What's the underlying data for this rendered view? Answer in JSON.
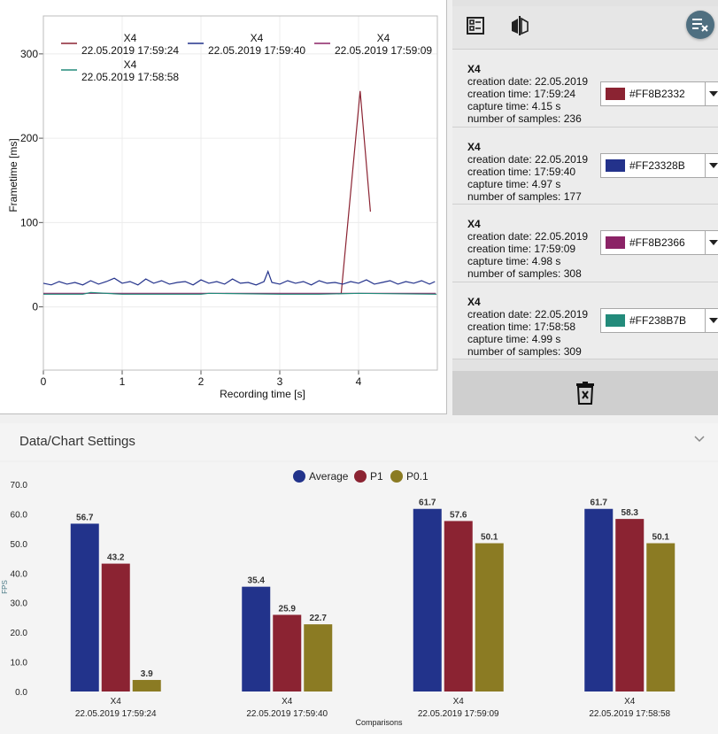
{
  "line_chart": {
    "chart_data": {
      "type": "line",
      "xlabel": "Recording time [s]",
      "ylabel": "Frametime [ms]",
      "xlim": [
        0,
        5
      ],
      "ylim": [
        -75,
        345
      ],
      "x_ticks": [
        "0",
        "1",
        "2",
        "3",
        "4"
      ],
      "y_ticks": [
        "0",
        "100",
        "200",
        "300"
      ],
      "grid": true,
      "series": [
        {
          "name": "X4",
          "sub": "22.05.2019 17:59:24",
          "color": "#8B2332",
          "x": [
            3.78,
            4.02,
            4.15
          ],
          "y": [
            16,
            256,
            113
          ]
        },
        {
          "name": "X4",
          "sub": "22.05.2019 17:59:40",
          "color": "#23328B",
          "x": [
            0.0,
            0.1,
            0.2,
            0.3,
            0.4,
            0.5,
            0.6,
            0.7,
            0.8,
            0.9,
            1.0,
            1.1,
            1.2,
            1.3,
            1.4,
            1.5,
            1.6,
            1.7,
            1.8,
            1.9,
            2.0,
            2.1,
            2.2,
            2.3,
            2.4,
            2.5,
            2.6,
            2.7,
            2.8,
            2.85,
            2.9,
            3.0,
            3.1,
            3.2,
            3.3,
            3.4,
            3.5,
            3.6,
            3.7,
            3.8,
            3.9,
            4.0,
            4.1,
            4.2,
            4.3,
            4.4,
            4.5,
            4.6,
            4.7,
            4.8,
            4.9,
            4.97
          ],
          "y": [
            28,
            26,
            30,
            27,
            29,
            26,
            31,
            27,
            30,
            34,
            28,
            30,
            26,
            33,
            28,
            31,
            27,
            29,
            30,
            26,
            32,
            28,
            30,
            27,
            33,
            28,
            29,
            26,
            30,
            42,
            29,
            27,
            31,
            28,
            30,
            26,
            31,
            28,
            29,
            27,
            30,
            28,
            32,
            27,
            29,
            31,
            27,
            30,
            28,
            31,
            27,
            30
          ]
        },
        {
          "name": "X4",
          "sub": "22.05.2019 17:59:09",
          "color": "#8B2366",
          "x": [
            0.0,
            4.98
          ],
          "y": [
            16,
            16
          ]
        },
        {
          "name": "X4",
          "sub": "22.05.2019 17:58:58",
          "color": "#238B7B",
          "x": [
            0.0,
            0.5,
            0.6,
            1.0,
            2.0,
            2.1,
            3.0,
            3.5,
            4.0,
            4.99
          ],
          "y": [
            15,
            15,
            17,
            15,
            15,
            16,
            15,
            15,
            16,
            15
          ]
        }
      ]
    }
  },
  "side_panel": {
    "toolbar": {
      "icon_left": "table-list-icon",
      "icon_mid": "compare-flip-icon",
      "icon_right": "clear-list-icon"
    },
    "entries": [
      {
        "title": "X4",
        "creation_date": "creation date: 22.05.2019",
        "creation_time": "creation time: 17:59:24",
        "capture_time": "capture time: 4.15 s",
        "samples": "number of samples: 236",
        "color_label": "#FF8B2332",
        "color": "#8B2332"
      },
      {
        "title": "X4",
        "creation_date": "creation date: 22.05.2019",
        "creation_time": "creation time: 17:59:40",
        "capture_time": "capture time: 4.97 s",
        "samples": "number of samples: 177",
        "color_label": "#FF23328B",
        "color": "#23328B"
      },
      {
        "title": "X4",
        "creation_date": "creation date: 22.05.2019",
        "creation_time": "creation time: 17:59:09",
        "capture_time": "capture time: 4.98 s",
        "samples": "number of samples: 308",
        "color_label": "#FF8B2366",
        "color": "#8B2366"
      },
      {
        "title": "X4",
        "creation_date": "creation date: 22.05.2019",
        "creation_time": "creation time: 17:58:58",
        "capture_time": "capture time: 4.99 s",
        "samples": "number of samples: 309",
        "color_label": "#FF238B7B",
        "color": "#238B7B"
      }
    ],
    "footer_icon": "trash-icon"
  },
  "settings": {
    "title": "Data/Chart Settings"
  },
  "bar_chart": {
    "chart_data": {
      "type": "bar",
      "xlabel": "Comparisons",
      "ylabel": "FPS",
      "ylim": [
        0,
        70
      ],
      "y_ticks": [
        "0.0",
        "10.0",
        "20.0",
        "30.0",
        "40.0",
        "50.0",
        "60.0",
        "70.0"
      ],
      "categories": [
        {
          "line1": "X4",
          "line2": "22.05.2019 17:59:24"
        },
        {
          "line1": "X4",
          "line2": "22.05.2019 17:59:40"
        },
        {
          "line1": "X4",
          "line2": "22.05.2019 17:59:09"
        },
        {
          "line1": "X4",
          "line2": "22.05.2019 17:58:58"
        }
      ],
      "series": [
        {
          "name": "Average",
          "color": "#22338B",
          "values": [
            56.7,
            35.4,
            61.7,
            61.7
          ],
          "labels": [
            "56.7",
            "35.4",
            "61.7",
            "61.7"
          ]
        },
        {
          "name": "P1",
          "color": "#8B2332",
          "values": [
            43.2,
            25.9,
            57.6,
            58.3
          ],
          "labels": [
            "43.2",
            "25.9",
            "57.6",
            "58.3"
          ]
        },
        {
          "name": "P0.1",
          "color": "#8B7B23",
          "values": [
            3.9,
            22.7,
            50.1,
            50.1
          ],
          "labels": [
            "3.9",
            "22.7",
            "50.1",
            "50.1"
          ]
        }
      ],
      "legend": "top-center"
    }
  }
}
